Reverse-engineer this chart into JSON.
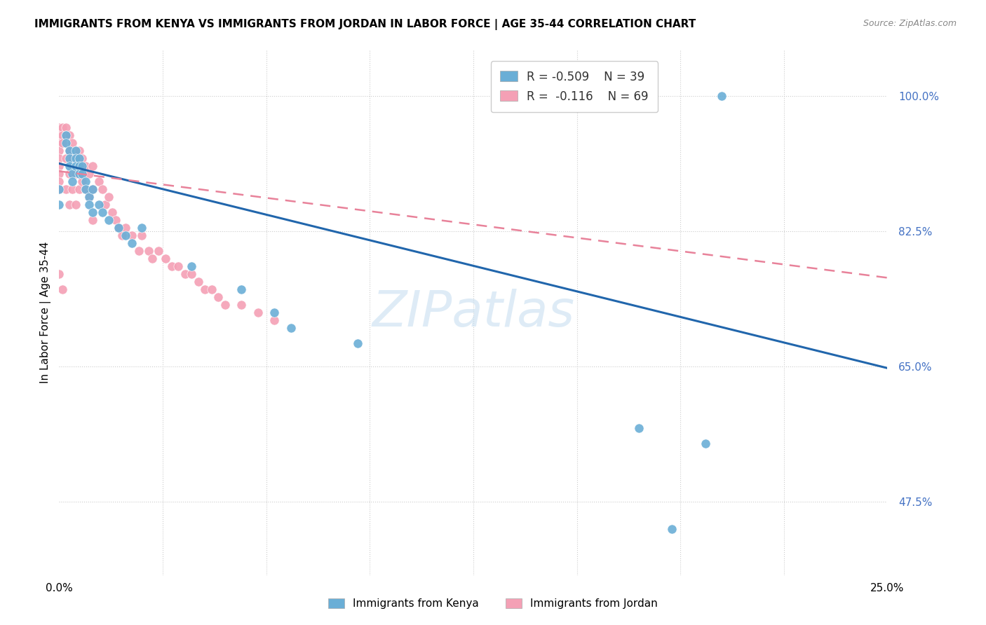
{
  "title": "IMMIGRANTS FROM KENYA VS IMMIGRANTS FROM JORDAN IN LABOR FORCE | AGE 35-44 CORRELATION CHART",
  "source": "Source: ZipAtlas.com",
  "ylabel": "In Labor Force | Age 35-44",
  "xlim": [
    0.0,
    0.25
  ],
  "ylim": [
    0.38,
    1.06
  ],
  "kenya_color": "#6aaed6",
  "jordan_color": "#f4a0b5",
  "kenya_line_color": "#2166ac",
  "jordan_line_color": "#e8829a",
  "watermark": "ZIPatlas",
  "legend_kenya_R": "-0.509",
  "legend_kenya_N": "39",
  "legend_jordan_R": "-0.116",
  "legend_jordan_N": "69",
  "kenya_scatter_x": [
    0.0,
    0.0,
    0.002,
    0.002,
    0.003,
    0.003,
    0.003,
    0.004,
    0.004,
    0.005,
    0.005,
    0.005,
    0.006,
    0.006,
    0.006,
    0.007,
    0.007,
    0.008,
    0.008,
    0.009,
    0.009,
    0.01,
    0.01,
    0.012,
    0.013,
    0.015,
    0.018,
    0.02,
    0.022,
    0.025,
    0.04,
    0.055,
    0.065,
    0.07,
    0.09,
    0.175,
    0.185,
    0.195,
    0.2
  ],
  "kenya_scatter_y": [
    0.88,
    0.86,
    0.95,
    0.94,
    0.93,
    0.92,
    0.91,
    0.9,
    0.89,
    0.93,
    0.92,
    0.91,
    0.92,
    0.91,
    0.9,
    0.91,
    0.9,
    0.89,
    0.88,
    0.87,
    0.86,
    0.88,
    0.85,
    0.86,
    0.85,
    0.84,
    0.83,
    0.82,
    0.81,
    0.83,
    0.78,
    0.75,
    0.72,
    0.7,
    0.68,
    0.57,
    0.44,
    0.55,
    1.0
  ],
  "jordan_scatter_x": [
    0.0,
    0.0,
    0.0,
    0.0,
    0.0,
    0.0,
    0.0,
    0.0,
    0.0,
    0.0,
    0.001,
    0.001,
    0.001,
    0.001,
    0.002,
    0.002,
    0.002,
    0.002,
    0.003,
    0.003,
    0.003,
    0.003,
    0.004,
    0.004,
    0.004,
    0.005,
    0.005,
    0.005,
    0.005,
    0.006,
    0.006,
    0.006,
    0.007,
    0.007,
    0.008,
    0.008,
    0.009,
    0.009,
    0.01,
    0.01,
    0.01,
    0.012,
    0.013,
    0.014,
    0.015,
    0.016,
    0.017,
    0.018,
    0.019,
    0.02,
    0.022,
    0.024,
    0.025,
    0.027,
    0.028,
    0.03,
    0.032,
    0.034,
    0.036,
    0.038,
    0.04,
    0.042,
    0.044,
    0.046,
    0.048,
    0.05,
    0.055,
    0.06,
    0.065
  ],
  "jordan_scatter_y": [
    0.96,
    0.95,
    0.94,
    0.93,
    0.92,
    0.91,
    0.9,
    0.89,
    0.88,
    0.77,
    0.96,
    0.95,
    0.94,
    0.75,
    0.96,
    0.95,
    0.92,
    0.88,
    0.95,
    0.93,
    0.9,
    0.86,
    0.94,
    0.92,
    0.88,
    0.93,
    0.92,
    0.9,
    0.86,
    0.93,
    0.91,
    0.88,
    0.92,
    0.89,
    0.91,
    0.88,
    0.9,
    0.87,
    0.91,
    0.88,
    0.84,
    0.89,
    0.88,
    0.86,
    0.87,
    0.85,
    0.84,
    0.83,
    0.82,
    0.83,
    0.82,
    0.8,
    0.82,
    0.8,
    0.79,
    0.8,
    0.79,
    0.78,
    0.78,
    0.77,
    0.77,
    0.76,
    0.75,
    0.75,
    0.74,
    0.73,
    0.73,
    0.72,
    0.71
  ],
  "kenya_trend_x": [
    0.0,
    0.25
  ],
  "kenya_trend_y": [
    0.913,
    0.648
  ],
  "jordan_trend_x": [
    0.0,
    0.25
  ],
  "jordan_trend_y": [
    0.903,
    0.765
  ]
}
